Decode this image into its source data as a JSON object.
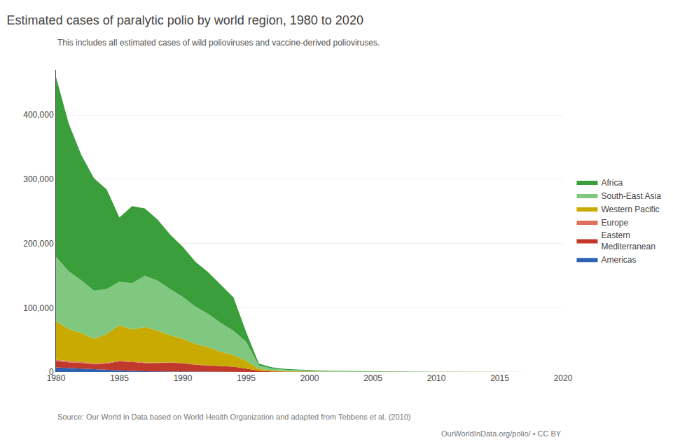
{
  "chart_data": {
    "type": "area",
    "stacked": true,
    "title": "Estimated cases of paralytic polio by world region, 1980 to 2020",
    "subtitle": "This includes all estimated cases of wild polioviruses and vaccine-derived polioviruses.",
    "annotations": [
      "Source: Our World in Data based on World Health Organization and adapted from Tebbens et al. (2010)",
      "OurWorldInData.org/polio/ • CC BY"
    ],
    "x": [
      1980,
      1981,
      1982,
      1983,
      1984,
      1985,
      1986,
      1987,
      1988,
      1989,
      1990,
      1991,
      1992,
      1993,
      1994,
      1995,
      1996,
      1997,
      1998,
      1999,
      2000,
      2001,
      2002,
      2003,
      2004,
      2005,
      2006,
      2007,
      2008,
      2009,
      2010,
      2011,
      2012,
      2013,
      2014,
      2015,
      2016,
      2017,
      2018,
      2019,
      2020
    ],
    "series": [
      {
        "name": "Americas",
        "color": "#3060b0",
        "values": [
          7000,
          6000,
          5500,
          4000,
          3000,
          2500,
          1500,
          1000,
          800,
          600,
          500,
          300,
          200,
          150,
          100,
          50,
          20,
          10,
          5,
          3,
          2,
          2,
          2,
          2,
          2,
          2,
          2,
          2,
          2,
          2,
          2,
          2,
          2,
          2,
          2,
          2,
          2,
          2,
          2,
          2,
          2
        ]
      },
      {
        "name": "Eastern\nMediterranean",
        "color": "#c0392b",
        "values": [
          10000,
          9000,
          8500,
          8000,
          10000,
          14000,
          14000,
          13000,
          13000,
          14000,
          13000,
          11000,
          10000,
          9000,
          8000,
          5000,
          2000,
          800,
          400,
          300,
          200,
          150,
          100,
          80,
          60,
          50,
          40,
          35,
          30,
          25,
          20,
          15,
          12,
          10,
          8,
          6,
          5,
          4,
          3,
          3,
          3
        ]
      },
      {
        "name": "Europe",
        "color": "#e07060",
        "values": [
          2000,
          1800,
          1600,
          1500,
          1200,
          1000,
          800,
          700,
          600,
          500,
          400,
          300,
          200,
          150,
          100,
          50,
          20,
          10,
          5,
          3,
          2,
          2,
          2,
          2,
          2,
          2,
          2,
          2,
          2,
          2,
          2,
          2,
          2,
          2,
          2,
          2,
          2,
          2,
          2,
          2,
          2
        ]
      },
      {
        "name": "Western Pacific",
        "color": "#c8aa00",
        "values": [
          60000,
          50000,
          45000,
          38000,
          45000,
          55000,
          50000,
          55000,
          50000,
          42000,
          38000,
          32000,
          28000,
          22000,
          18000,
          12000,
          3000,
          1500,
          1000,
          700,
          500,
          400,
          300,
          250,
          200,
          150,
          120,
          100,
          80,
          60,
          40,
          30,
          20,
          15,
          10,
          8,
          6,
          5,
          4,
          3,
          2
        ]
      },
      {
        "name": "South-East Asia",
        "color": "#80c880",
        "values": [
          100000,
          90000,
          82000,
          75000,
          70000,
          68000,
          72000,
          80000,
          78000,
          72000,
          65000,
          58000,
          52000,
          45000,
          38000,
          30000,
          5000,
          3000,
          2000,
          1500,
          1000,
          800,
          600,
          500,
          400,
          300,
          250,
          200,
          150,
          120,
          100,
          80,
          60,
          40,
          30,
          20,
          15,
          10,
          8,
          6,
          4
        ]
      },
      {
        "name": "Africa",
        "color": "#3a9e3a",
        "values": [
          280000,
          230000,
          195000,
          175000,
          155000,
          100000,
          120000,
          105000,
          95000,
          85000,
          78000,
          70000,
          65000,
          60000,
          52000,
          15000,
          3000,
          2000,
          1500,
          1200,
          1000,
          800,
          700,
          600,
          500,
          400,
          350,
          300,
          250,
          200,
          180,
          150,
          120,
          100,
          80,
          60,
          40,
          30,
          20,
          15,
          8
        ]
      }
    ],
    "xlim": [
      1980,
      2020
    ],
    "xticks": [
      1980,
      1985,
      1990,
      1995,
      2000,
      2005,
      2010,
      2015,
      2020
    ],
    "ylim": [
      0,
      470000
    ],
    "yticks": [
      0,
      {
        "value": 100000,
        "label": "100,000"
      },
      {
        "value": 200000,
        "label": "200,000"
      },
      {
        "value": 300000,
        "label": "300,000"
      },
      {
        "value": 400000,
        "label": "400,000"
      }
    ],
    "grid": true,
    "legend": "right"
  }
}
